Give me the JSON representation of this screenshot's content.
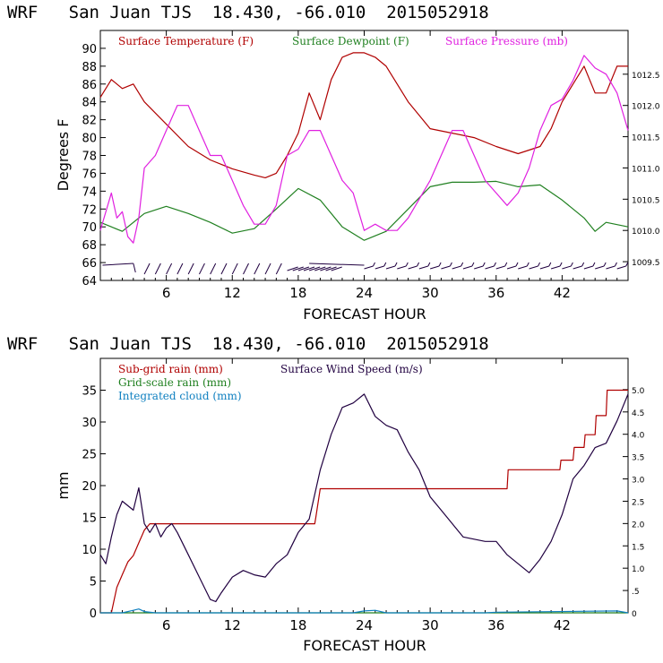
{
  "chart_data": [
    {
      "type": "line",
      "title": "WRF   San Juan TJS  18.430, -66.010  2015052918",
      "xlabel": "FORECAST HOUR",
      "ylabel": "Degrees F",
      "xlim": [
        0,
        48
      ],
      "ylim": [
        64,
        92
      ],
      "y2lim": [
        1009.2,
        1013.2
      ],
      "x_ticks": [
        "6",
        "12",
        "18",
        "24",
        "30",
        "36",
        "42"
      ],
      "y_ticks": [
        "64",
        "66",
        "68",
        "70",
        "72",
        "74",
        "76",
        "78",
        "80",
        "82",
        "84",
        "86",
        "88",
        "90"
      ],
      "y2_ticks": [
        "1009.5",
        "1010.0",
        "1010.5",
        "1011.0",
        "1011.5",
        "1012.0",
        "1012.5"
      ],
      "colors": {
        "temperature": "#b00000",
        "dewpoint": "#208020",
        "pressure": "#e020e0",
        "wind": "#200040"
      },
      "series": [
        {
          "name": "Surface Temperature (F)",
          "axis": "left",
          "x": [
            0,
            1,
            2,
            3,
            4,
            6,
            8,
            10,
            12,
            14,
            15,
            16,
            17,
            18,
            19,
            20,
            21,
            22,
            23,
            24,
            25,
            26,
            28,
            30,
            32,
            34,
            36,
            38,
            40,
            41,
            42,
            43,
            44,
            45,
            46,
            47,
            48
          ],
          "values": [
            84.5,
            86.5,
            85.5,
            86,
            84,
            81.5,
            79,
            77.5,
            76.5,
            75.8,
            75.5,
            76,
            78,
            80.5,
            85,
            82,
            86.5,
            89,
            89.5,
            89.5,
            89,
            88,
            84,
            81,
            80.5,
            80,
            79,
            78.2,
            79,
            81,
            84,
            86,
            88,
            85,
            85,
            88,
            88
          ]
        },
        {
          "name": "Surface Dewpoint (F)",
          "axis": "left",
          "x": [
            0,
            1,
            2,
            4,
            6,
            8,
            10,
            12,
            14,
            16,
            18,
            20,
            22,
            24,
            26,
            28,
            30,
            32,
            34,
            36,
            38,
            40,
            42,
            44,
            45,
            46,
            48
          ],
          "values": [
            70.5,
            70,
            69.5,
            71.5,
            72.3,
            71.5,
            70.5,
            69.3,
            69.8,
            72,
            74.3,
            73,
            70,
            68.5,
            69.5,
            72,
            74.5,
            75,
            75,
            75.1,
            74.5,
            74.7,
            73,
            71,
            69.5,
            70.5,
            70
          ]
        },
        {
          "name": "Surface Pressure (mb)",
          "axis": "right",
          "x": [
            0,
            1,
            1.5,
            2,
            2.5,
            3,
            3.5,
            4,
            5,
            6,
            7,
            8,
            9,
            10,
            11,
            12,
            13,
            14,
            15,
            16,
            17,
            18,
            19,
            20,
            21,
            22,
            23,
            24,
            25,
            26,
            27,
            28,
            29,
            30,
            31,
            32,
            33,
            34,
            35,
            36,
            37,
            38,
            39,
            40,
            41,
            42,
            43,
            44,
            45,
            46,
            47,
            48
          ],
          "values": [
            1010.0,
            1010.6,
            1010.2,
            1010.3,
            1009.9,
            1009.8,
            1010.2,
            1011.0,
            1011.2,
            1011.6,
            1012.0,
            1012.0,
            1011.6,
            1011.2,
            1011.2,
            1010.8,
            1010.4,
            1010.1,
            1010.1,
            1010.4,
            1011.2,
            1011.3,
            1011.6,
            1011.6,
            1011.2,
            1010.8,
            1010.6,
            1010.0,
            1010.1,
            1010.0,
            1010.0,
            1010.2,
            1010.5,
            1010.8,
            1011.2,
            1011.6,
            1011.6,
            1011.2,
            1010.8,
            1010.6,
            1010.4,
            1010.6,
            1011.0,
            1011.6,
            1012.0,
            1012.1,
            1012.4,
            1012.8,
            1012.6,
            1012.5,
            1012.2,
            1011.6
          ]
        }
      ],
      "legend": [
        "Surface Temperature (F)",
        "Surface Dewpoint (F)",
        "Surface Pressure (mb)"
      ]
    },
    {
      "type": "line",
      "title": "WRF   San Juan TJS  18.430, -66.010  2015052918",
      "xlabel": "FORECAST HOUR",
      "ylabel": "mm",
      "xlim": [
        0,
        48
      ],
      "ylim": [
        0,
        40
      ],
      "y2lim": [
        0,
        5.7
      ],
      "x_ticks": [
        "6",
        "12",
        "18",
        "24",
        "30",
        "36",
        "42"
      ],
      "y_ticks": [
        "0",
        "5",
        "10",
        "15",
        "20",
        "25",
        "30",
        "35"
      ],
      "y2_ticks": [
        "0",
        ".5",
        "1.0",
        "1.5",
        "2.0",
        "2.5",
        "3.0",
        "3.5",
        "4.0",
        "4.5",
        "5.0"
      ],
      "colors": {
        "subgrid": "#b00000",
        "gridscale": "#208020",
        "cloud": "#1080c0",
        "wind": "#200040"
      },
      "series": [
        {
          "name": "Sub-grid rain (mm)",
          "axis": "left",
          "x": [
            0,
            1,
            1.5,
            2,
            2.5,
            3,
            3.5,
            4,
            4.5,
            19.5,
            19.6,
            20,
            37,
            37.1,
            41.8,
            41.9,
            43,
            43.1,
            44,
            44.1,
            45,
            45.1,
            46,
            46.1,
            48
          ],
          "values": [
            0,
            0,
            4,
            6,
            8,
            9,
            11,
            13,
            14,
            14,
            15,
            19.5,
            19.5,
            22.5,
            22.5,
            24,
            24,
            26,
            26,
            28,
            28,
            31,
            31,
            35,
            35
          ]
        },
        {
          "name": "Grid-scale rain (mm)",
          "axis": "left",
          "x": [
            0,
            48
          ],
          "values": [
            0,
            0
          ]
        },
        {
          "name": "Integrated cloud (mm)",
          "axis": "left",
          "x": [
            0,
            2,
            3,
            3.5,
            4,
            5,
            23,
            24,
            25,
            26,
            35,
            36,
            47,
            48
          ],
          "values": [
            0,
            0,
            0.4,
            0.6,
            0.2,
            0,
            0,
            0.3,
            0.4,
            0,
            0,
            0.1,
            0.3,
            0
          ]
        },
        {
          "name": "Surface Wind Speed (m/s)",
          "axis": "right",
          "x": [
            0,
            0.5,
            1,
            1.5,
            2,
            3,
            3.5,
            4,
            4.5,
            5,
            5.5,
            6,
            6.5,
            7,
            8,
            9,
            10,
            10.5,
            11,
            12,
            13,
            14,
            15,
            16,
            17,
            18,
            19,
            20,
            21,
            22,
            23,
            24,
            25,
            26,
            27,
            28,
            29,
            30,
            31,
            32,
            33,
            34,
            35,
            36,
            37,
            38,
            39,
            40,
            41,
            42,
            43,
            44,
            45,
            46,
            47,
            48
          ],
          "values": [
            1.3,
            1.1,
            1.7,
            2.2,
            2.5,
            2.3,
            2.8,
            2.0,
            1.8,
            2.0,
            1.7,
            1.9,
            2.0,
            1.8,
            1.3,
            0.8,
            0.3,
            0.25,
            0.45,
            0.8,
            0.95,
            0.85,
            0.8,
            1.1,
            1.3,
            1.8,
            2.1,
            3.2,
            4.0,
            4.6,
            4.7,
            4.9,
            4.4,
            4.2,
            4.1,
            3.6,
            3.2,
            2.6,
            2.3,
            2.0,
            1.7,
            1.65,
            1.6,
            1.6,
            1.3,
            1.1,
            0.9,
            1.2,
            1.6,
            2.2,
            3.0,
            3.3,
            3.7,
            3.8,
            4.3,
            4.9
          ]
        }
      ],
      "legend": [
        "Sub-grid rain (mm)",
        "Surface Wind Speed (m/s)",
        "Grid-scale rain (mm)",
        "Integrated cloud (mm)"
      ]
    }
  ]
}
